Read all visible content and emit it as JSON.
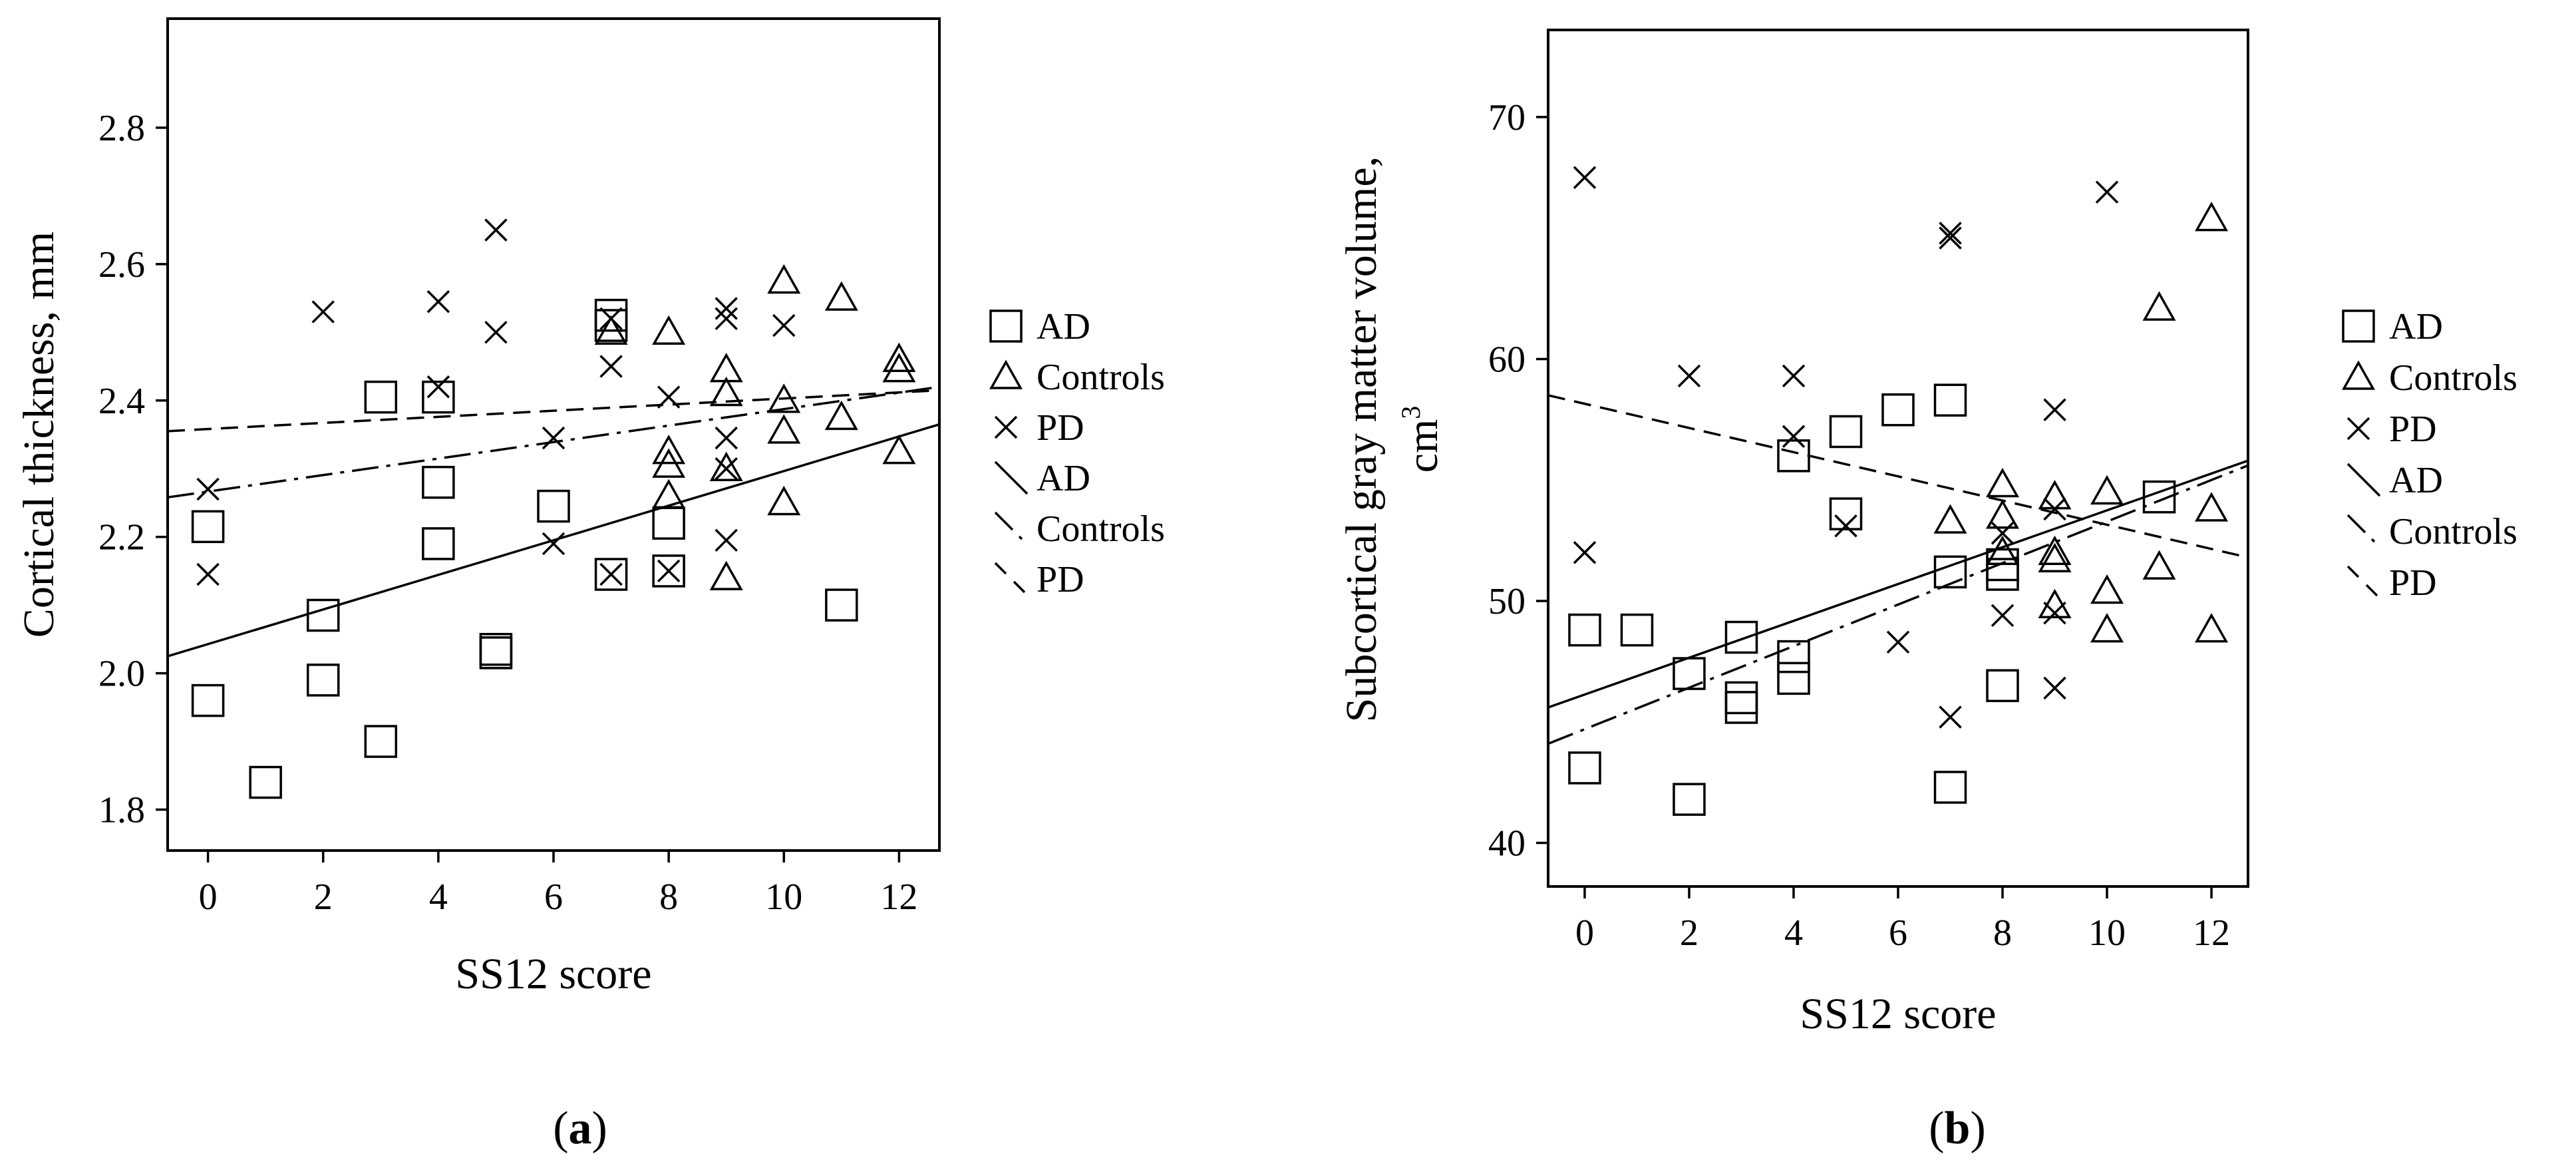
{
  "chart_data": [
    {
      "id": "a",
      "type": "scatter",
      "caption_open": "(",
      "caption_letter": "a",
      "caption_close": ")",
      "xlabel": "SS12 score",
      "ylabel": "Cortical thickness, mm",
      "xlim": [
        -0.7,
        12.7
      ],
      "ylim": [
        1.74,
        2.96
      ],
      "xticks": [
        0,
        2,
        4,
        6,
        8,
        10,
        12
      ],
      "yticks": [
        1.8,
        2.0,
        2.2,
        2.4,
        2.6,
        2.8
      ],
      "ytick_labels": [
        "1.8",
        "2.0",
        "2.2",
        "2.4",
        "2.6",
        "2.8"
      ],
      "legend": {
        "markers": [
          {
            "label": "AD",
            "symbol": "square"
          },
          {
            "label": "Controls",
            "symbol": "triangle"
          },
          {
            "label": "PD",
            "symbol": "cross"
          }
        ],
        "lines": [
          {
            "label": "AD",
            "style": "solid"
          },
          {
            "label": "Controls",
            "style": "dashdot"
          },
          {
            "label": "PD",
            "style": "dashed"
          }
        ]
      },
      "series": [
        {
          "name": "AD",
          "marker": "square",
          "x": [
            0,
            0,
            1,
            2,
            2,
            3,
            3,
            4,
            4,
            4,
            5,
            5,
            6,
            7,
            7,
            7,
            8,
            8,
            11
          ],
          "y": [
            2.215,
            1.96,
            1.84,
            2.085,
            1.99,
            2.405,
            1.9,
            2.405,
            2.28,
            2.19,
            2.035,
            2.03,
            2.245,
            2.525,
            2.51,
            2.145,
            2.22,
            2.15,
            2.1
          ]
        },
        {
          "name": "Controls",
          "marker": "triangle",
          "x": [
            7,
            8,
            8,
            8,
            8,
            9,
            9,
            9,
            9,
            10,
            10,
            10,
            10,
            11,
            11,
            12,
            12,
            12
          ],
          "y": [
            2.5,
            2.5,
            2.325,
            2.305,
            2.26,
            2.445,
            2.41,
            2.3,
            2.14,
            2.575,
            2.4,
            2.355,
            2.25,
            2.55,
            2.375,
            2.46,
            2.445,
            2.325
          ]
        },
        {
          "name": "PD",
          "marker": "cross",
          "x": [
            0,
            0,
            2,
            4,
            4,
            5,
            5,
            6,
            6,
            7,
            7,
            7,
            8,
            8,
            9,
            9,
            9,
            9,
            9,
            10
          ],
          "y": [
            2.27,
            2.145,
            2.53,
            2.545,
            2.42,
            2.65,
            2.5,
            2.345,
            2.19,
            2.52,
            2.45,
            2.145,
            2.405,
            2.15,
            2.535,
            2.52,
            2.345,
            2.3,
            2.195,
            2.51
          ]
        }
      ],
      "fit_lines": [
        {
          "name": "AD",
          "style": "solid",
          "x": [
            -0.7,
            12.7
          ],
          "y": [
            2.025,
            2.365
          ]
        },
        {
          "name": "Controls",
          "style": "dashdot",
          "x": [
            -0.7,
            12.7
          ],
          "y": [
            2.258,
            2.42
          ]
        },
        {
          "name": "PD",
          "style": "dashed",
          "x": [
            -0.7,
            12.7
          ],
          "y": [
            2.355,
            2.415
          ]
        }
      ]
    },
    {
      "id": "b",
      "type": "scatter",
      "caption_open": "(",
      "caption_letter": "b",
      "caption_close": ")",
      "xlabel": "SS12 score",
      "ylabel": "Subcortical gray matter volume,",
      "ylabel_line2": "cm",
      "ylabel_sup": "3",
      "xlim": [
        -0.7,
        12.7
      ],
      "ylim": [
        38.2,
        73.6
      ],
      "xticks": [
        0,
        2,
        4,
        6,
        8,
        10,
        12
      ],
      "yticks": [
        40,
        50,
        60,
        70
      ],
      "ytick_labels": [
        "40",
        "50",
        "60",
        "70"
      ],
      "legend": {
        "markers": [
          {
            "label": "AD",
            "symbol": "square"
          },
          {
            "label": "Controls",
            "symbol": "triangle"
          },
          {
            "label": "PD",
            "symbol": "cross"
          }
        ],
        "lines": [
          {
            "label": "AD",
            "style": "solid"
          },
          {
            "label": "Controls",
            "style": "dashdot"
          },
          {
            "label": "PD",
            "style": "dashed"
          }
        ]
      },
      "series": [
        {
          "name": "AD",
          "marker": "square",
          "x": [
            0,
            0,
            1,
            2,
            2,
            3,
            3,
            3,
            4,
            4,
            4,
            5,
            5,
            6,
            7,
            7,
            7,
            8,
            8,
            8,
            11
          ],
          "y": [
            48.8,
            43.1,
            48.8,
            47.0,
            41.8,
            48.5,
            46.0,
            45.6,
            56.0,
            47.7,
            46.8,
            57.0,
            53.6,
            57.9,
            58.3,
            51.2,
            42.3,
            51.5,
            51.1,
            46.5,
            54.3
          ]
        },
        {
          "name": "Controls",
          "marker": "triangle",
          "x": [
            7,
            8,
            8,
            8,
            9,
            9,
            9,
            9,
            10,
            10,
            10,
            11,
            11,
            12,
            12,
            12
          ],
          "y": [
            53.3,
            54.8,
            53.5,
            52.0,
            54.3,
            52.0,
            51.7,
            49.8,
            54.5,
            50.4,
            48.8,
            62.1,
            51.4,
            65.8,
            53.8,
            48.8
          ]
        },
        {
          "name": "PD",
          "marker": "cross",
          "x": [
            0,
            0,
            2,
            4,
            4,
            5,
            6,
            7,
            7,
            7,
            8,
            8,
            9,
            9,
            9,
            9,
            10
          ],
          "y": [
            67.5,
            52.0,
            59.3,
            59.3,
            56.8,
            53.1,
            48.3,
            65.2,
            65.0,
            45.2,
            52.8,
            49.4,
            57.9,
            53.8,
            49.5,
            46.4,
            66.9
          ]
        }
      ],
      "fit_lines": [
        {
          "name": "AD",
          "style": "solid",
          "x": [
            -0.7,
            12.7
          ],
          "y": [
            45.6,
            55.8
          ]
        },
        {
          "name": "Controls",
          "style": "dashdot",
          "x": [
            -0.7,
            12.7
          ],
          "y": [
            44.1,
            55.6
          ]
        },
        {
          "name": "PD",
          "style": "dashed",
          "x": [
            -0.7,
            12.7
          ],
          "y": [
            58.5,
            51.8
          ]
        }
      ]
    }
  ]
}
